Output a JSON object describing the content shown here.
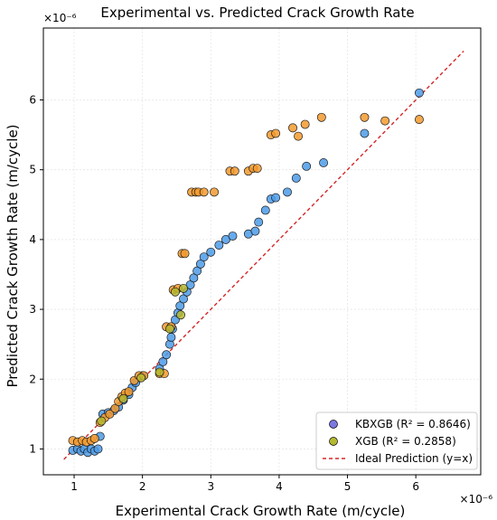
{
  "chart_data": {
    "type": "scatter",
    "title": "Experimental vs. Predicted Crack Growth Rate",
    "xlabel": "Experimental Crack Growth Rate (m/cycle)",
    "ylabel": "Predicted Crack Growth Rate (m/cycle)",
    "x_offset_label": "×10⁻⁶",
    "y_offset_label": "×10⁻⁶",
    "xlim": [
      0.55,
      6.95
    ],
    "ylim": [
      0.63,
      7.03
    ],
    "x_ticks": [
      1,
      2,
      3,
      4,
      5,
      6
    ],
    "y_ticks": [
      1,
      2,
      3,
      4,
      5,
      6
    ],
    "grid": true,
    "legend_position": "lower-right",
    "series": [
      {
        "name": "KBXGB (R² = 0.8646)",
        "color": "#4c9be8",
        "points": [
          [
            0.98,
            0.98
          ],
          [
            1.05,
            1.0
          ],
          [
            1.1,
            0.97
          ],
          [
            1.15,
            1.0
          ],
          [
            1.2,
            0.95
          ],
          [
            1.25,
            1.0
          ],
          [
            1.3,
            0.97
          ],
          [
            1.35,
            1.0
          ],
          [
            1.38,
            1.18
          ],
          [
            1.42,
            1.5
          ],
          [
            1.5,
            1.52
          ],
          [
            1.58,
            1.55
          ],
          [
            1.65,
            1.6
          ],
          [
            1.72,
            1.7
          ],
          [
            1.8,
            1.78
          ],
          [
            1.85,
            1.88
          ],
          [
            1.9,
            1.95
          ],
          [
            2.0,
            2.05
          ],
          [
            2.25,
            2.15
          ],
          [
            2.3,
            2.25
          ],
          [
            2.35,
            2.35
          ],
          [
            2.4,
            2.5
          ],
          [
            2.42,
            2.6
          ],
          [
            2.44,
            2.72
          ],
          [
            2.48,
            2.85
          ],
          [
            2.52,
            2.95
          ],
          [
            2.55,
            3.05
          ],
          [
            2.6,
            3.15
          ],
          [
            2.65,
            3.25
          ],
          [
            2.7,
            3.35
          ],
          [
            2.75,
            3.45
          ],
          [
            2.8,
            3.55
          ],
          [
            2.85,
            3.65
          ],
          [
            2.9,
            3.75
          ],
          [
            3.0,
            3.82
          ],
          [
            3.12,
            3.92
          ],
          [
            3.22,
            4.0
          ],
          [
            3.32,
            4.05
          ],
          [
            3.55,
            4.08
          ],
          [
            3.65,
            4.12
          ],
          [
            3.7,
            4.25
          ],
          [
            3.8,
            4.42
          ],
          [
            3.88,
            4.58
          ],
          [
            3.95,
            4.6
          ],
          [
            4.12,
            4.68
          ],
          [
            4.25,
            4.88
          ],
          [
            4.4,
            5.05
          ],
          [
            4.65,
            5.1
          ],
          [
            5.25,
            5.52
          ],
          [
            6.05,
            6.1
          ]
        ]
      },
      {
        "name": "XGB (R² = 0.2858)",
        "color": "#f39a2e",
        "points": [
          [
            0.98,
            1.12
          ],
          [
            1.05,
            1.1
          ],
          [
            1.12,
            1.12
          ],
          [
            1.18,
            1.1
          ],
          [
            1.25,
            1.12
          ],
          [
            1.3,
            1.15
          ],
          [
            1.38,
            1.38
          ],
          [
            1.45,
            1.45
          ],
          [
            1.52,
            1.5
          ],
          [
            1.6,
            1.58
          ],
          [
            1.65,
            1.68
          ],
          [
            1.7,
            1.75
          ],
          [
            1.75,
            1.8
          ],
          [
            1.8,
            1.82
          ],
          [
            1.88,
            1.98
          ],
          [
            1.95,
            2.05
          ],
          [
            2.02,
            2.05
          ],
          [
            2.25,
            2.08
          ],
          [
            2.32,
            2.08
          ],
          [
            2.35,
            2.75
          ],
          [
            2.42,
            2.75
          ],
          [
            2.45,
            3.28
          ],
          [
            2.52,
            3.3
          ],
          [
            2.58,
            3.8
          ],
          [
            2.62,
            3.8
          ],
          [
            2.72,
            4.68
          ],
          [
            2.78,
            4.68
          ],
          [
            2.82,
            4.68
          ],
          [
            2.9,
            4.68
          ],
          [
            3.05,
            4.68
          ],
          [
            3.28,
            4.98
          ],
          [
            3.35,
            4.98
          ],
          [
            3.55,
            4.98
          ],
          [
            3.62,
            5.02
          ],
          [
            3.68,
            5.02
          ],
          [
            3.88,
            5.5
          ],
          [
            3.95,
            5.52
          ],
          [
            4.2,
            5.6
          ],
          [
            4.28,
            5.48
          ],
          [
            4.38,
            5.65
          ],
          [
            4.62,
            5.75
          ],
          [
            5.25,
            5.75
          ],
          [
            5.55,
            5.7
          ],
          [
            6.05,
            5.72
          ]
        ]
      },
      {
        "name": "XGB (R² = 0.2858)",
        "color": "#b5b930",
        "legend_marker": true,
        "points": [
          [
            1.4,
            1.4
          ],
          [
            1.72,
            1.72
          ],
          [
            1.98,
            2.02
          ],
          [
            2.25,
            2.1
          ],
          [
            2.48,
            3.25
          ],
          [
            2.56,
            2.92
          ],
          [
            2.6,
            3.3
          ],
          [
            2.4,
            2.72
          ]
        ]
      },
      {
        "name": "Ideal Prediction (y=x)",
        "type": "line",
        "color": "#d62728",
        "points": [
          [
            0.85,
            0.85
          ],
          [
            6.7,
            6.7
          ]
        ]
      }
    ]
  },
  "legend": {
    "items": [
      {
        "label": "KBXGB (R² = 0.8646)",
        "color": "#7b78e0",
        "kind": "marker"
      },
      {
        "label": "XGB (R² = 0.2858)",
        "color": "#b5b930",
        "kind": "marker"
      },
      {
        "label": "Ideal Prediction (y=x)",
        "color": "#d62728",
        "kind": "dashed-line"
      }
    ]
  }
}
